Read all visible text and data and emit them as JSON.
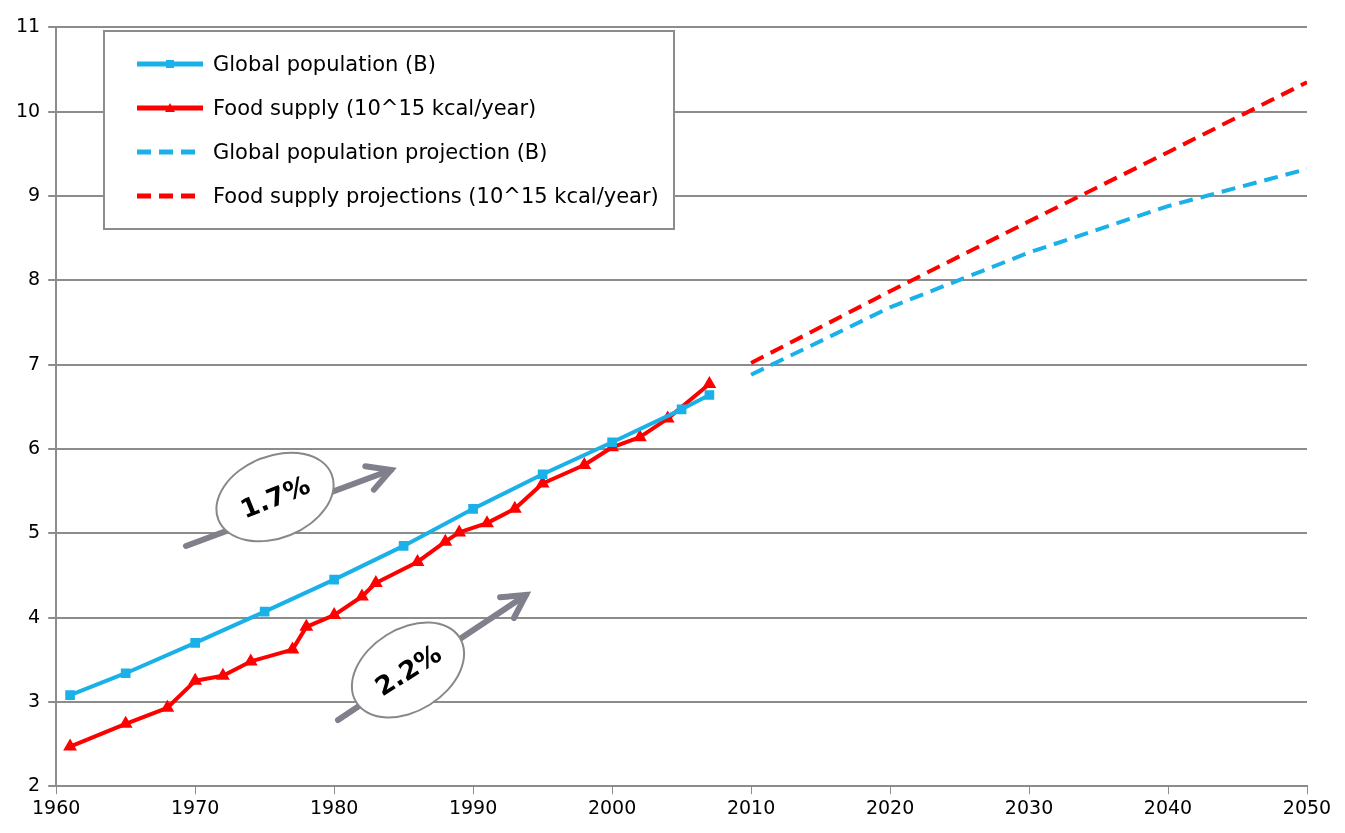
{
  "chart_data": {
    "type": "line",
    "xlim": [
      1960,
      2050
    ],
    "xticks": [
      1960,
      1970,
      1980,
      1990,
      2000,
      2010,
      2020,
      2030,
      2040,
      2050
    ],
    "ylim": [
      2,
      11
    ],
    "yticks": [
      2,
      3,
      4,
      5,
      6,
      7,
      8,
      9,
      10,
      11
    ],
    "grid": "y",
    "legend": "top left",
    "annotations": [
      "1.7%",
      "2.2%"
    ],
    "series": [
      {
        "name": "Global population (B)",
        "color": "#1ab0e8",
        "marker": "square",
        "line_style": "solid",
        "x": [
          1961,
          1965,
          1970,
          1975,
          1980,
          1985,
          1990,
          1995,
          2000,
          2005,
          2007
        ],
        "values": [
          3.08,
          3.34,
          3.7,
          4.07,
          4.45,
          4.85,
          5.29,
          5.7,
          6.08,
          6.47,
          6.64
        ]
      },
      {
        "name": "Food supply (10^15 kcal/year)",
        "color": "#ff0000",
        "marker": "triangle",
        "line_style": "solid",
        "x": [
          1961,
          1965,
          1968,
          1970,
          1972,
          1974,
          1977,
          1978,
          1980,
          1982,
          1983,
          1986,
          1988,
          1989,
          1991,
          1993,
          1995,
          1998,
          2000,
          2002,
          2004,
          2007
        ],
        "values": [
          2.47,
          2.74,
          2.93,
          3.25,
          3.31,
          3.48,
          3.62,
          3.89,
          4.03,
          4.25,
          4.41,
          4.66,
          4.9,
          5.01,
          5.12,
          5.29,
          5.59,
          5.81,
          6.02,
          6.14,
          6.36,
          6.77
        ]
      },
      {
        "name": "Global population projection (B)",
        "color": "#1ab0e8",
        "marker": "none",
        "line_style": "dashed",
        "x": [
          2010,
          2020,
          2030,
          2040,
          2050
        ],
        "values": [
          6.88,
          7.68,
          8.33,
          8.88,
          9.32
        ]
      },
      {
        "name": "Food supply projections (10^15 kcal/year)",
        "color": "#ff0000",
        "marker": "none",
        "line_style": "dashed",
        "x": [
          2010,
          2020,
          2030,
          2040,
          2050
        ],
        "values": [
          7.02,
          7.87,
          8.7,
          9.52,
          10.35
        ]
      }
    ]
  }
}
